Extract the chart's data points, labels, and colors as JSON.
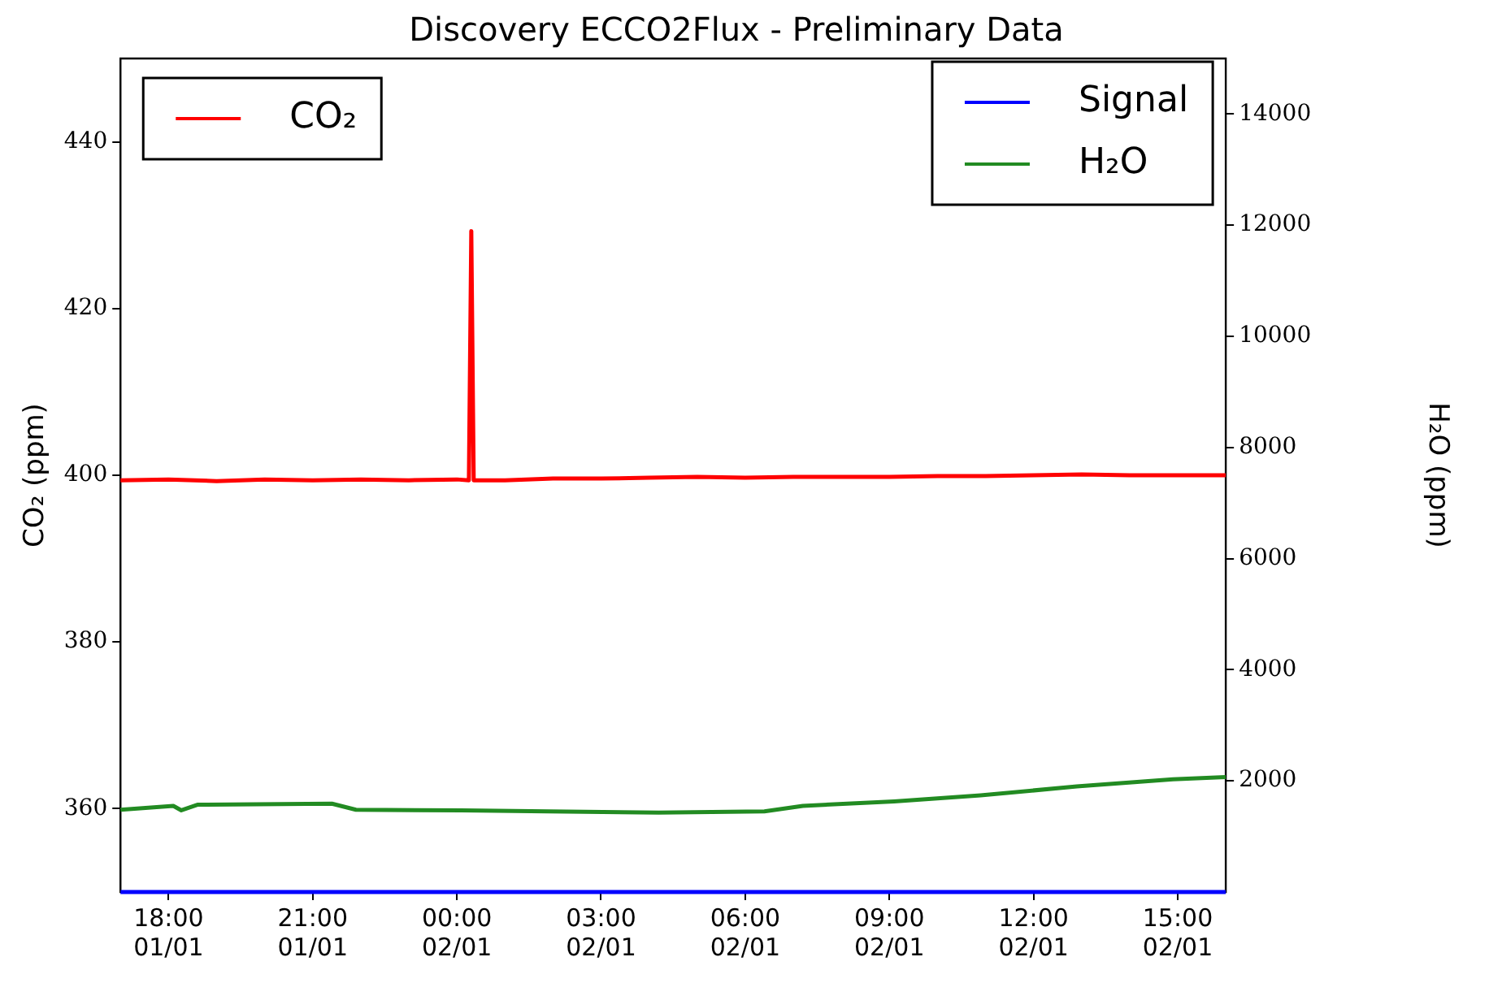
{
  "chart_data": {
    "type": "line",
    "title": "Discovery ECCO2Flux - Preliminary Data",
    "ylabel": "CO₂ (ppm)",
    "y2label": "H₂O (ppm)",
    "xlim": [
      "--01-01T17:00",
      "--01-02T16:00"
    ],
    "xticks": [
      {
        "value": "--01-01T18:00",
        "label": "18:00 01/01"
      },
      {
        "value": "--01-01T21:00",
        "label": "21:00 01/01"
      },
      {
        "value": "--01-02T00:00",
        "label": "00:00 02/01"
      },
      {
        "value": "--01-02T03:00",
        "label": "03:00 02/01"
      },
      {
        "value": "--01-02T06:00",
        "label": "06:00 02/01"
      },
      {
        "value": "--01-02T09:00",
        "label": "09:00 02/01"
      },
      {
        "value": "--01-02T12:00",
        "label": "12:00 02/01"
      },
      {
        "value": "--01-02T15:00",
        "label": "15:00 02/01"
      }
    ],
    "ylim": [
      350,
      450
    ],
    "yticks": [
      360,
      380,
      400,
      420,
      440
    ],
    "y2lim": [
      0,
      15000
    ],
    "y2ticks": [
      2000,
      4000,
      6000,
      8000,
      10000,
      12000,
      14000
    ],
    "grid": false,
    "legend": "top",
    "marker": "none",
    "line_style": "solid",
    "series": [
      {
        "name": "CO₂",
        "color": "#ff0000",
        "x": [
          "--01-01T17:00",
          "--01-01T18:00",
          "--01-01T19:00",
          "--01-01T20:00",
          "--01-01T21:00",
          "--01-01T22:00",
          "--01-01T23:00",
          "--01-02T00:00",
          "--01-02T00:15",
          "--01-02T00:18",
          "--01-02T00:21",
          "--01-02T01:00",
          "--01-02T02:00",
          "--01-02T03:00",
          "--01-02T04:00",
          "--01-02T05:00",
          "--01-02T06:00",
          "--01-02T07:00",
          "--01-02T08:00",
          "--01-02T09:00",
          "--01-02T10:00",
          "--01-02T11:00",
          "--01-02T12:00",
          "--01-02T13:00",
          "--01-02T14:00",
          "--01-02T15:00",
          "--01-02T16:00"
        ],
        "values": [
          399.4,
          399.5,
          399.3,
          399.5,
          399.4,
          399.5,
          399.4,
          399.5,
          399.4,
          429.3,
          399.4,
          399.4,
          399.6,
          399.6,
          399.7,
          399.8,
          399.7,
          399.8,
          399.8,
          399.8,
          399.9,
          399.9,
          400,
          400.1,
          400,
          400,
          400
        ]
      },
      {
        "name": "Signal",
        "color": "#0000ff",
        "axis": "y2",
        "x": [
          "--01-01T17:00",
          "--01-02T16:00"
        ],
        "values": [
          0,
          0
        ]
      },
      {
        "name": "H₂O",
        "color": "#228b22",
        "axis": "y2",
        "x": [
          "--01-01T17:00",
          "--01-01T18:06",
          "--01-01T18:16",
          "--01-01T18:36",
          "--01-01T21:24",
          "--01-01T21:54",
          "--01-02T00:06",
          "--01-02T01:54",
          "--01-02T04:12",
          "--01-02T06:24",
          "--01-02T07:12",
          "--01-02T09:06",
          "--01-02T10:54",
          "--01-02T12:54",
          "--01-02T14:54",
          "--01-02T16:00"
        ],
        "values": [
          1480,
          1550,
          1470,
          1570,
          1590,
          1480,
          1470,
          1450,
          1430,
          1450,
          1550,
          1630,
          1740,
          1900,
          2030,
          2070
        ]
      }
    ]
  }
}
